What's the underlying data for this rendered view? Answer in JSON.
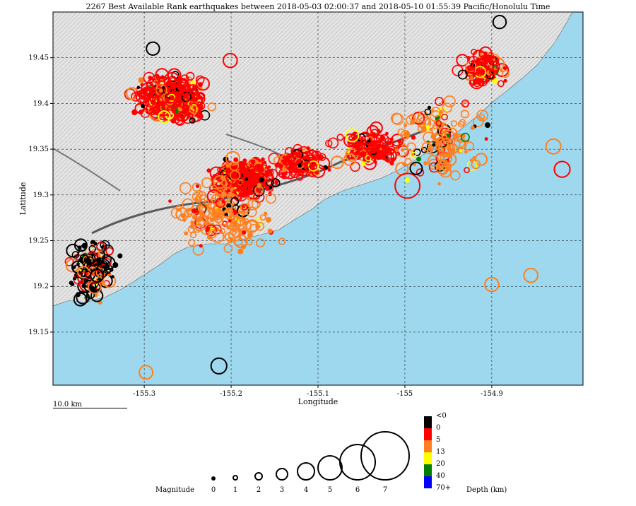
{
  "title": "2267 Best Available Rank earthquakes between 2018-05-03 02:00:37 and 2018-05-10 01:55:39 Pacific/Honolulu Time",
  "map": {
    "xlabel": "Longitude",
    "ylabel": "Latitude",
    "xlim": [
      -155.405,
      -154.795
    ],
    "ylim": [
      19.092,
      19.5
    ],
    "x_ticks": [
      "-155.3",
      "-155.2",
      "-155.1",
      "-155",
      "-154.9"
    ],
    "y_ticks": [
      "19.45",
      "19.4",
      "19.35",
      "19.3",
      "19.25",
      "19.2",
      "19.15"
    ],
    "ocean_color": "#9ed8ef",
    "land_color": "#e2e2e2",
    "grid": "dashed"
  },
  "scale_bar": {
    "label": "10.0 km"
  },
  "legend": {
    "magnitude_label": "Magnitude",
    "magnitudes": [
      "0",
      "1",
      "2",
      "3",
      "4",
      "5",
      "6",
      "7"
    ],
    "depth_label": "Depth (km)",
    "depth_bins": [
      {
        "label": "<0",
        "color": "#000000"
      },
      {
        "label": "0",
        "color": "#ff0000"
      },
      {
        "label": "5",
        "color": "#ff7f1e"
      },
      {
        "label": "13",
        "color": "#ffff00"
      },
      {
        "label": "20",
        "color": "#008000"
      },
      {
        "label": "40",
        "color": "#0000ff"
      },
      {
        "label": "70+",
        "color": ""
      }
    ]
  },
  "chart_data": {
    "type": "scatter",
    "title": "2267 Best Available Rank earthquakes between 2018-05-03 02:00:37 and 2018-05-10 01:55:39 Pacific/Honolulu Time",
    "xlabel": "Longitude",
    "ylabel": "Latitude",
    "xlim": [
      -155.405,
      -154.795
    ],
    "ylim": [
      19.092,
      19.5
    ],
    "point_fields": [
      "lon",
      "lat",
      "magnitude",
      "depth_class"
    ],
    "clusters_note_fields": [
      "center_lon",
      "center_lat",
      "spread_lon",
      "spread_lat",
      "count",
      "dominant_depth"
    ],
    "clusters": [
      [
        -155.27,
        19.405,
        0.04,
        0.025,
        420,
        "0"
      ],
      [
        -155.185,
        19.32,
        0.035,
        0.02,
        300,
        "0"
      ],
      [
        -155.12,
        19.335,
        0.03,
        0.015,
        150,
        "0"
      ],
      [
        -155.04,
        19.35,
        0.04,
        0.02,
        160,
        "0"
      ],
      [
        -154.91,
        19.44,
        0.025,
        0.02,
        120,
        "0"
      ],
      [
        -155.36,
        19.22,
        0.03,
        0.035,
        150,
        "<0"
      ],
      [
        -155.21,
        19.28,
        0.06,
        0.04,
        200,
        "5"
      ],
      [
        -154.96,
        19.36,
        0.05,
        0.05,
        150,
        "5"
      ]
    ],
    "notable_points": [
      [
        -154.997,
        19.31,
        5.0,
        "0"
      ],
      [
        -155.214,
        19.113,
        3.0,
        "<0"
      ],
      [
        -154.819,
        19.328,
        3.0,
        "0"
      ],
      [
        -154.829,
        19.353,
        2.8,
        "5"
      ],
      [
        -154.855,
        19.212,
        2.6,
        "5"
      ],
      [
        -154.9,
        19.202,
        2.6,
        "5"
      ],
      [
        -155.268,
        19.425,
        3.0,
        "0"
      ],
      [
        -155.201,
        19.447,
        2.6,
        "0"
      ],
      [
        -155.198,
        19.34,
        2.5,
        "5"
      ],
      [
        -154.891,
        19.489,
        2.4,
        "<0"
      ],
      [
        -155.29,
        19.46,
        2.4,
        "<0"
      ],
      [
        -155.298,
        19.106,
        2.5,
        "5"
      ],
      [
        -154.987,
        19.329,
        2.2,
        "<0"
      ]
    ]
  }
}
